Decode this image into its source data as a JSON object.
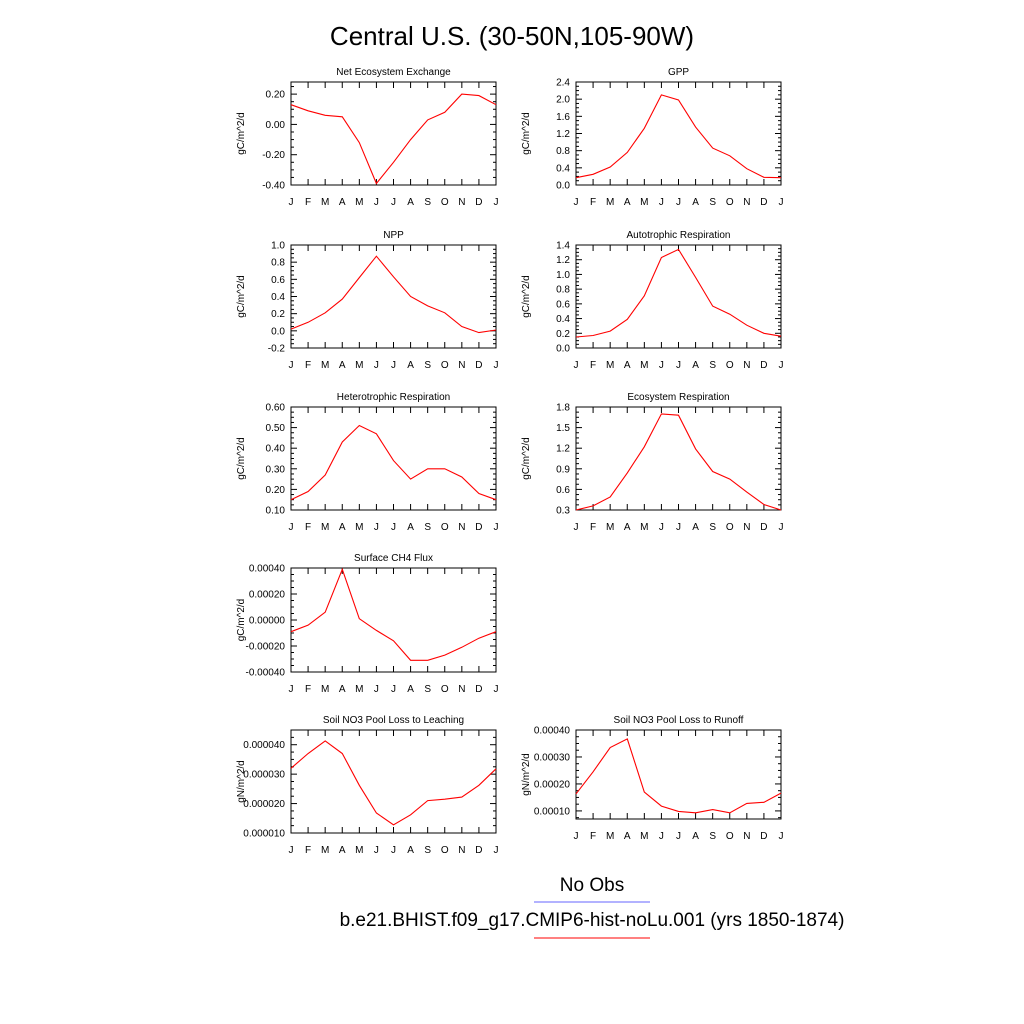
{
  "title": "Central U.S. (30-50N,105-90W)",
  "legend": {
    "entries": [
      {
        "label": "No Obs",
        "color": "#6666ff"
      },
      {
        "label": "b.e21.BHIST.f09_g17.CMIP6-hist-noLu.001 (yrs 1850-1874)",
        "color": "#ff0000"
      }
    ]
  },
  "chart_data": [
    {
      "type": "line",
      "title": "Net Ecosystem Exchange",
      "ylabel": "gC/m^2/d",
      "categories": [
        "J",
        "F",
        "M",
        "A",
        "M",
        "J",
        "J",
        "A",
        "S",
        "O",
        "N",
        "D",
        "J"
      ],
      "ylim": [
        -0.4,
        0.28
      ],
      "yticks": [
        -0.4,
        -0.2,
        0.0,
        0.2
      ],
      "ytick_labels": [
        "-0.40",
        "-0.20",
        "0.00",
        "0.20"
      ],
      "series": [
        {
          "color": "#ff0000",
          "values": [
            0.13,
            0.09,
            0.06,
            0.05,
            -0.12,
            -0.39,
            -0.25,
            -0.1,
            0.03,
            0.08,
            0.2,
            0.19,
            0.13
          ]
        }
      ]
    },
    {
      "type": "line",
      "title": "GPP",
      "ylabel": "gC/m^2/d",
      "categories": [
        "J",
        "F",
        "M",
        "A",
        "M",
        "J",
        "J",
        "A",
        "S",
        "O",
        "N",
        "D",
        "J"
      ],
      "ylim": [
        0,
        2.4
      ],
      "yticks": [
        0,
        0.4,
        0.8,
        1.2,
        1.6,
        2.0,
        2.4
      ],
      "ytick_labels": [
        "0.0",
        "0.4",
        "0.8",
        "1.2",
        "1.6",
        "2.0",
        "2.4"
      ],
      "series": [
        {
          "color": "#ff0000",
          "values": [
            0.17,
            0.25,
            0.42,
            0.76,
            1.32,
            2.1,
            1.98,
            1.35,
            0.86,
            0.68,
            0.38,
            0.18,
            0.17
          ]
        }
      ]
    },
    {
      "type": "line",
      "title": "NPP",
      "ylabel": "gC/m^2/d",
      "categories": [
        "J",
        "F",
        "M",
        "A",
        "M",
        "J",
        "J",
        "A",
        "S",
        "O",
        "N",
        "D",
        "J"
      ],
      "ylim": [
        -0.2,
        1.0
      ],
      "yticks": [
        -0.2,
        0.0,
        0.2,
        0.4,
        0.6,
        0.8,
        1.0
      ],
      "ytick_labels": [
        "-0.2",
        "0.0",
        "0.2",
        "0.4",
        "0.6",
        "0.8",
        "1.0"
      ],
      "series": [
        {
          "color": "#ff0000",
          "values": [
            0.02,
            0.1,
            0.21,
            0.37,
            0.62,
            0.87,
            0.63,
            0.4,
            0.29,
            0.21,
            0.05,
            -0.02,
            0.01
          ]
        }
      ]
    },
    {
      "type": "line",
      "title": "Autotrophic Respiration",
      "ylabel": "gC/m^2/d",
      "categories": [
        "J",
        "F",
        "M",
        "A",
        "M",
        "J",
        "J",
        "A",
        "S",
        "O",
        "N",
        "D",
        "J"
      ],
      "ylim": [
        0,
        1.4
      ],
      "yticks": [
        0,
        0.2,
        0.4,
        0.6,
        0.8,
        1.0,
        1.2,
        1.4
      ],
      "ytick_labels": [
        "0.0",
        "0.2",
        "0.4",
        "0.6",
        "0.8",
        "1.0",
        "1.2",
        "1.4"
      ],
      "series": [
        {
          "color": "#ff0000",
          "values": [
            0.15,
            0.17,
            0.23,
            0.39,
            0.71,
            1.23,
            1.34,
            0.96,
            0.57,
            0.46,
            0.31,
            0.2,
            0.16
          ]
        }
      ]
    },
    {
      "type": "line",
      "title": "Heterotrophic Respiration",
      "ylabel": "gC/m^2/d",
      "categories": [
        "J",
        "F",
        "M",
        "A",
        "M",
        "J",
        "J",
        "A",
        "S",
        "O",
        "N",
        "D",
        "J"
      ],
      "ylim": [
        0.1,
        0.6
      ],
      "yticks": [
        0.1,
        0.2,
        0.3,
        0.4,
        0.5,
        0.6
      ],
      "ytick_labels": [
        "0.10",
        "0.20",
        "0.30",
        "0.40",
        "0.50",
        "0.60"
      ],
      "series": [
        {
          "color": "#ff0000",
          "values": [
            0.15,
            0.19,
            0.27,
            0.43,
            0.51,
            0.47,
            0.34,
            0.25,
            0.3,
            0.3,
            0.26,
            0.18,
            0.15
          ]
        }
      ]
    },
    {
      "type": "line",
      "title": "Ecosystem Respiration",
      "ylabel": "gC/m^2/d",
      "categories": [
        "J",
        "F",
        "M",
        "A",
        "M",
        "J",
        "J",
        "A",
        "S",
        "O",
        "N",
        "D",
        "J"
      ],
      "ylim": [
        0.3,
        1.8
      ],
      "yticks": [
        0.3,
        0.6,
        0.9,
        1.2,
        1.5,
        1.8
      ],
      "ytick_labels": [
        "0.3",
        "0.6",
        "0.9",
        "1.2",
        "1.5",
        "1.8"
      ],
      "series": [
        {
          "color": "#ff0000",
          "values": [
            0.3,
            0.36,
            0.49,
            0.84,
            1.22,
            1.7,
            1.68,
            1.19,
            0.86,
            0.75,
            0.56,
            0.38,
            0.3
          ]
        }
      ]
    },
    {
      "type": "line",
      "title": "Surface CH4 Flux",
      "ylabel": "gC/m^2/d",
      "categories": [
        "J",
        "F",
        "M",
        "A",
        "M",
        "J",
        "J",
        "A",
        "S",
        "O",
        "N",
        "D",
        "J"
      ],
      "ylim": [
        -0.0004,
        0.0004
      ],
      "yticks": [
        -0.0004,
        -0.0002,
        0.0,
        0.0002,
        0.0004
      ],
      "ytick_labels": [
        "-0.00040",
        "-0.00020",
        "0.00000",
        "0.00020",
        "0.00040"
      ],
      "series": [
        {
          "color": "#ff0000",
          "values": [
            -9e-05,
            -4e-05,
            6e-05,
            0.00039,
            1e-05,
            -8e-05,
            -0.00016,
            -0.00031,
            -0.00031,
            -0.00027,
            -0.00021,
            -0.00014,
            -9e-05
          ]
        }
      ]
    },
    {
      "type": "line",
      "title": "Soil NO3 Pool Loss to Leaching",
      "ylabel": "gN/m^2/d",
      "categories": [
        "J",
        "F",
        "M",
        "A",
        "M",
        "J",
        "J",
        "A",
        "S",
        "O",
        "N",
        "D",
        "J"
      ],
      "ylim": [
        1e-05,
        4.5e-05
      ],
      "yticks": [
        1e-05,
        2e-05,
        3e-05,
        4e-05
      ],
      "ytick_labels": [
        "0.000010",
        "0.000020",
        "0.000030",
        "0.000040"
      ],
      "series": [
        {
          "color": "#ff0000",
          "values": [
            3.2e-05,
            3.7e-05,
            4.13e-05,
            3.7e-05,
            2.62e-05,
            1.68e-05,
            1.28e-05,
            1.62e-05,
            2.1e-05,
            2.15e-05,
            2.22e-05,
            2.62e-05,
            3.18e-05
          ]
        }
      ]
    },
    {
      "type": "line",
      "title": "Soil NO3 Pool Loss to Runoff",
      "ylabel": "gN/m^2/d",
      "categories": [
        "J",
        "F",
        "M",
        "A",
        "M",
        "J",
        "J",
        "A",
        "S",
        "O",
        "N",
        "D",
        "J"
      ],
      "ylim": [
        7e-05,
        0.0004
      ],
      "yticks": [
        0.0001,
        0.0002,
        0.0003,
        0.0004
      ],
      "ytick_labels": [
        "0.00010",
        "0.00020",
        "0.00030",
        "0.00040"
      ],
      "series": [
        {
          "color": "#ff0000",
          "values": [
            0.000163,
            0.000245,
            0.000335,
            0.000367,
            0.00017,
            0.000118,
            9.8e-05,
            9.3e-05,
            0.000105,
            9.3e-05,
            0.000128,
            0.000132,
            0.000166
          ]
        }
      ]
    }
  ]
}
